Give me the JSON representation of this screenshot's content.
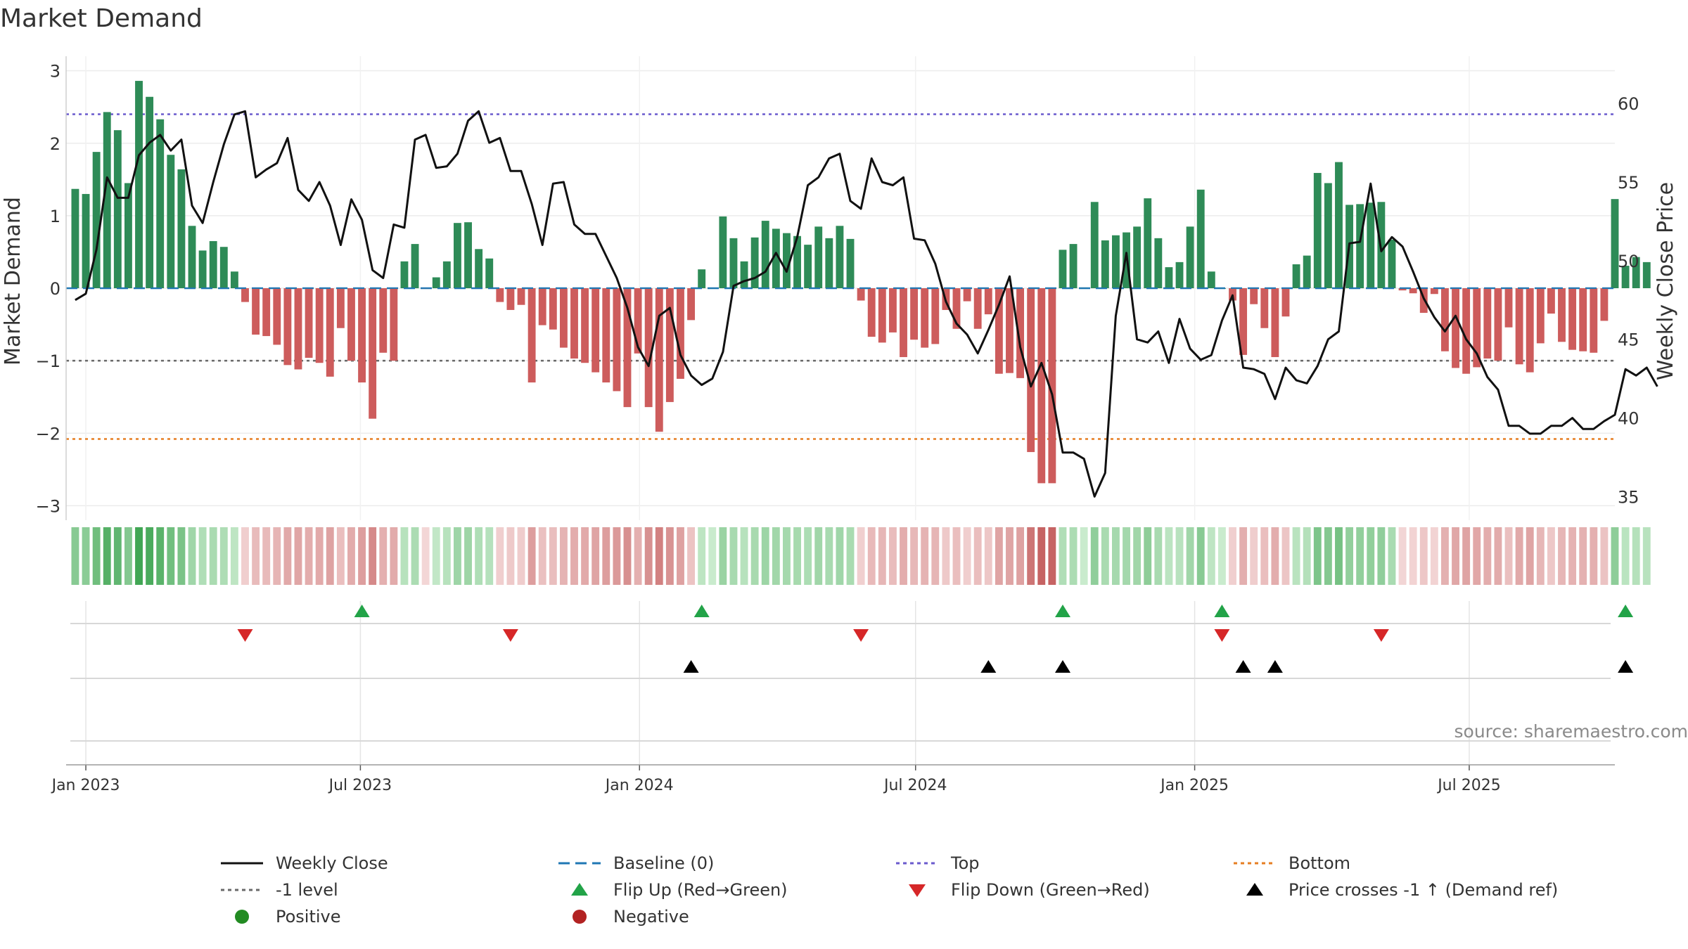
{
  "chart_data": {
    "type": "bar+line",
    "title": "Market Demand",
    "source": "source: sharemaestro.com",
    "y_left": {
      "label": "Market Demand",
      "lim": [
        -3.2,
        3.2
      ],
      "ticks": [
        3,
        2,
        1,
        0,
        -1,
        -2,
        -3
      ],
      "tick_labels": [
        "3",
        "2",
        "1",
        "0",
        "−1",
        "−2",
        "−3"
      ]
    },
    "y_right": {
      "label": "Weekly Close Price",
      "lim": [
        33.5,
        63
      ],
      "ticks": [
        60,
        55,
        50,
        45,
        40,
        35
      ],
      "tick_labels": [
        "60",
        "55",
        "50",
        "45",
        "40",
        "35"
      ]
    },
    "x_axis": {
      "start": "2022-12-19",
      "end": "2025-10-05",
      "ticks": [
        {
          "date": "2023-01-01",
          "label": "Jan 2023"
        },
        {
          "date": "2023-07-01",
          "label": "Jul 2023"
        },
        {
          "date": "2024-01-01",
          "label": "Jan 2024"
        },
        {
          "date": "2024-07-01",
          "label": "Jul 2024"
        },
        {
          "date": "2025-01-01",
          "label": "Jan 2025"
        },
        {
          "date": "2025-07-01",
          "label": "Jul 2025"
        }
      ]
    },
    "first_week": "2022-12-25",
    "demand": [
      1.37,
      1.3,
      1.88,
      2.43,
      2.18,
      1.45,
      2.86,
      2.64,
      2.33,
      1.84,
      1.64,
      0.86,
      0.52,
      0.65,
      0.57,
      0.23,
      -0.19,
      -0.64,
      -0.66,
      -0.78,
      -1.06,
      -1.12,
      -0.96,
      -1.03,
      -1.22,
      -0.55,
      -1.0,
      -1.3,
      -1.8,
      -0.89,
      -1.0,
      0.37,
      0.61,
      -0.01,
      0.15,
      0.37,
      0.9,
      0.91,
      0.54,
      0.41,
      -0.19,
      -0.3,
      -0.23,
      -1.3,
      -0.51,
      -0.57,
      -0.82,
      -0.97,
      -1.03,
      -1.16,
      -1.3,
      -1.42,
      -1.64,
      -0.9,
      -1.64,
      -1.98,
      -1.57,
      -1.25,
      -0.44,
      0.26,
      0.0,
      0.99,
      0.69,
      0.37,
      0.7,
      0.93,
      0.82,
      0.76,
      0.72,
      0.6,
      0.85,
      0.69,
      0.86,
      0.68,
      -0.17,
      -0.67,
      -0.75,
      -0.61,
      -0.95,
      -0.71,
      -0.82,
      -0.77,
      -0.3,
      -0.56,
      -0.18,
      -0.56,
      -0.36,
      -1.18,
      -1.17,
      -1.24,
      -2.26,
      -2.69,
      -2.69,
      0.53,
      0.61,
      0.01,
      1.19,
      0.66,
      0.73,
      0.77,
      0.85,
      1.24,
      0.69,
      0.29,
      0.36,
      0.85,
      1.36,
      0.23,
      0.0,
      -0.17,
      -0.92,
      -0.22,
      -0.55,
      -0.95,
      -0.39,
      0.33,
      0.45,
      1.59,
      1.45,
      1.74,
      1.15,
      1.16,
      1.18,
      1.19,
      0.67,
      -0.03,
      -0.07,
      -0.34,
      -0.08,
      -0.87,
      -1.1,
      -1.18,
      -1.09,
      -0.97,
      -1.0,
      -0.54,
      -1.05,
      -1.16,
      -0.76,
      -0.35,
      -0.74,
      -0.85,
      -0.87,
      -0.89,
      -0.45,
      1.23,
      0.31,
      0.43,
      0.36
    ],
    "price": [
      47.5,
      47.9,
      50.7,
      55.3,
      54.0,
      54.0,
      56.7,
      57.5,
      58.0,
      57.0,
      57.7,
      53.5,
      52.4,
      55.0,
      57.4,
      59.3,
      59.5,
      55.3,
      55.8,
      56.2,
      57.8,
      54.5,
      53.8,
      55.0,
      53.5,
      51.0,
      53.9,
      52.6,
      49.4,
      48.9,
      52.3,
      52.1,
      57.7,
      58.0,
      55.9,
      56.0,
      56.8,
      58.9,
      59.5,
      57.5,
      57.8,
      55.7,
      55.7,
      53.6,
      51.0,
      54.9,
      55.0,
      52.3,
      51.7,
      51.7,
      50.3,
      48.9,
      47.0,
      44.5,
      43.3,
      46.5,
      47.0,
      44.0,
      42.7,
      42.1,
      42.5,
      44.2,
      48.4,
      48.7,
      48.9,
      49.3,
      50.5,
      49.3,
      51.5,
      54.8,
      55.3,
      56.5,
      56.8,
      53.8,
      53.3,
      56.5,
      55.0,
      54.8,
      55.3,
      51.4,
      51.3,
      49.8,
      47.4,
      46.0,
      45.3,
      44.1,
      45.6,
      47.2,
      49.0,
      44.5,
      42.0,
      43.5,
      41.5,
      37.8,
      37.8,
      37.4,
      35.0,
      36.5,
      46.5,
      50.5,
      45.0,
      44.8,
      45.5,
      43.5,
      46.3,
      44.4,
      43.7,
      44.0,
      46.2,
      47.8,
      43.2,
      43.1,
      42.8,
      41.2,
      43.2,
      42.4,
      42.2,
      43.3,
      45.0,
      45.5,
      51.1,
      51.2,
      54.9,
      50.6,
      51.5,
      50.9,
      49.3,
      47.6,
      46.4,
      45.5,
      46.5,
      45.0,
      44.1,
      42.6,
      41.8,
      39.5,
      39.5,
      39.0,
      39.0,
      39.5,
      39.5,
      40.0,
      39.3,
      39.3,
      39.8,
      40.2,
      43.1,
      42.7,
      43.2,
      42.0
    ],
    "levels": {
      "baseline": 0,
      "top": 2.4,
      "minus_one": -1,
      "bottom": -2.08
    },
    "flip_up_weeks": [
      27,
      59,
      93,
      108,
      146
    ],
    "flip_down_weeks": [
      16,
      41,
      74,
      108,
      123
    ],
    "price_cross_weeks": [
      58,
      86,
      93,
      110,
      113,
      146
    ],
    "colors": {
      "pos_bar": "#2e8b57",
      "neg_bar": "#cd5c5c",
      "price": "#111111",
      "baseline": "#1f77b4",
      "top": "#6a5acd",
      "minus_one": "#696969",
      "bottom": "#e67e22",
      "flip_up": "#22a348",
      "flip_down": "#d62728",
      "cross": "#000000",
      "positive": "#228b22",
      "negative": "#b22222"
    }
  },
  "legend": [
    {
      "key": "weekly_close",
      "label": "Weekly Close",
      "marker": "solid-line",
      "color": "#111111"
    },
    {
      "key": "baseline",
      "label": "Baseline (0)",
      "marker": "dashed-line",
      "color": "#1f77b4"
    },
    {
      "key": "top",
      "label": "Top",
      "marker": "dotted-line",
      "color": "#6a5acd"
    },
    {
      "key": "bottom",
      "label": "Bottom",
      "marker": "dotted-line",
      "color": "#e67e22"
    },
    {
      "key": "minus_one",
      "label": "-1 level",
      "marker": "dotted-line",
      "color": "#696969"
    },
    {
      "key": "flip_up",
      "label": "Flip Up (Red→Green)",
      "marker": "triangle-up",
      "color": "#22a348"
    },
    {
      "key": "flip_down",
      "label": "Flip Down (Green→Red)",
      "marker": "triangle-down",
      "color": "#d62728"
    },
    {
      "key": "price_cross",
      "label": "Price crosses -1 ↑ (Demand ref)",
      "marker": "triangle-up",
      "color": "#000000"
    },
    {
      "key": "positive",
      "label": "Positive",
      "marker": "circle",
      "color": "#228b22"
    },
    {
      "key": "negative",
      "label": "Negative",
      "marker": "circle",
      "color": "#b22222"
    }
  ]
}
